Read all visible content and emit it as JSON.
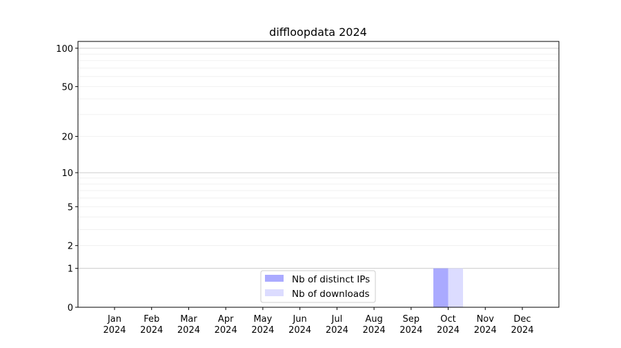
{
  "chart_data": {
    "type": "bar",
    "title": "diffloopdata 2024",
    "xlabel": "",
    "ylabel": "",
    "yscale": "log(1+y)",
    "ylim": [
      0,
      113
    ],
    "grid": "y major and minor",
    "legend_position": "bottom-center",
    "categories": [
      [
        "Jan",
        "2024"
      ],
      [
        "Feb",
        "2024"
      ],
      [
        "Mar",
        "2024"
      ],
      [
        "Apr",
        "2024"
      ],
      [
        "May",
        "2024"
      ],
      [
        "Jun",
        "2024"
      ],
      [
        "Jul",
        "2024"
      ],
      [
        "Aug",
        "2024"
      ],
      [
        "Sep",
        "2024"
      ],
      [
        "Oct",
        "2024"
      ],
      [
        "Nov",
        "2024"
      ],
      [
        "Dec",
        "2024"
      ]
    ],
    "yticks": [
      0,
      1,
      2,
      5,
      10,
      20,
      50,
      100
    ],
    "series": [
      {
        "name": "Nb of distinct IPs",
        "color": "#aaaaff",
        "values": [
          0,
          0,
          0,
          0,
          0,
          0,
          0,
          0,
          0,
          1,
          0,
          0
        ]
      },
      {
        "name": "Nb of downloads",
        "color": "#dcdcff",
        "values": [
          0,
          0,
          0,
          0,
          0,
          0,
          0,
          0,
          0,
          1,
          0,
          0
        ]
      }
    ]
  }
}
